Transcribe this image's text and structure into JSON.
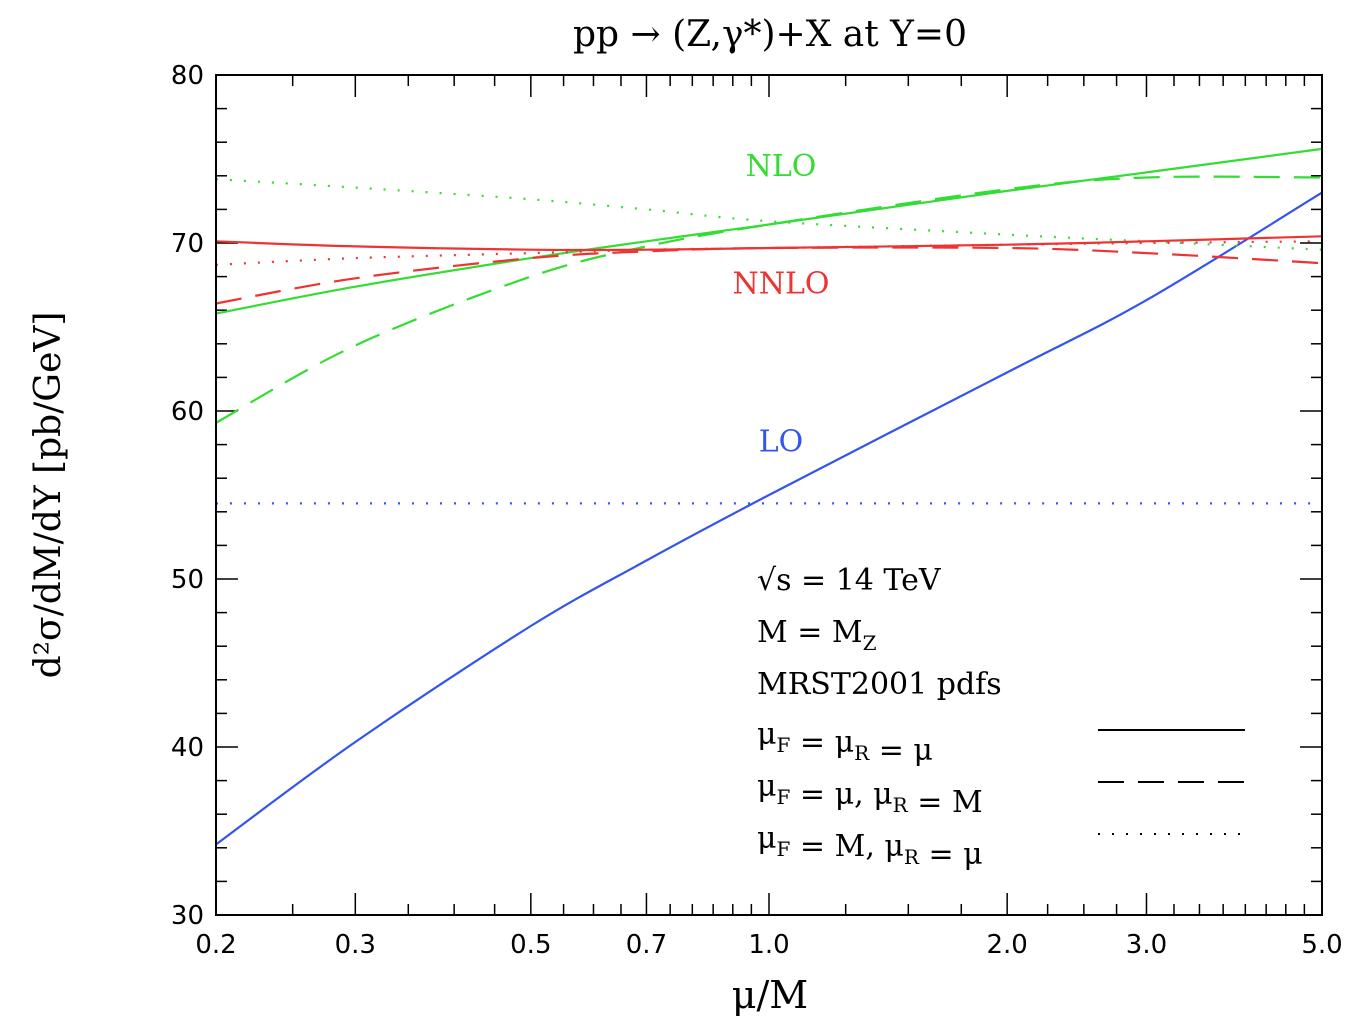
{
  "chart_data": {
    "type": "line",
    "title": "pp → (Z,γ*)+X at Y=0",
    "xlabel": "μ/M",
    "ylabel": "d²σ/dM/dY [pb/GeV]",
    "x_scale": "log",
    "xlim": [
      0.2,
      5.0
    ],
    "ylim": [
      30,
      80
    ],
    "x_ticks": [
      {
        "value": 0.2,
        "label": "0.2"
      },
      {
        "value": 0.3,
        "label": "0.3"
      },
      {
        "value": 0.5,
        "label": "0.5"
      },
      {
        "value": 0.7,
        "label": "0.7"
      },
      {
        "value": 1.0,
        "label": "1.0"
      },
      {
        "value": 2.0,
        "label": "2.0"
      },
      {
        "value": 3.0,
        "label": "3.0"
      },
      {
        "value": 5.0,
        "label": "5.0"
      }
    ],
    "y_ticks": [
      {
        "value": 30,
        "label": "30"
      },
      {
        "value": 40,
        "label": "40"
      },
      {
        "value": 50,
        "label": "50"
      },
      {
        "value": 60,
        "label": "60"
      },
      {
        "value": 70,
        "label": "70"
      },
      {
        "value": 80,
        "label": "80"
      }
    ],
    "grid": false,
    "series": [
      {
        "order": "LO",
        "style": "solid",
        "color": "#3355ee",
        "x": [
          0.2,
          0.3,
          0.5,
          0.7,
          1.0,
          2.0,
          3.0,
          5.0
        ],
        "y": [
          34.2,
          40.3,
          47.2,
          51.1,
          55.0,
          62.3,
          66.6,
          73.0
        ]
      },
      {
        "order": "LO",
        "style": "dotted",
        "color": "#3355ee",
        "x": [
          0.2,
          5.0
        ],
        "y": [
          54.5,
          54.5
        ]
      },
      {
        "order": "NLO",
        "style": "solid",
        "color": "#33dd33",
        "x": [
          0.2,
          0.3,
          0.5,
          0.7,
          1.0,
          2.0,
          3.0,
          5.0
        ],
        "y": [
          65.8,
          67.4,
          69.1,
          70.1,
          71.1,
          73.1,
          74.2,
          75.6
        ]
      },
      {
        "order": "NLO",
        "style": "dashed",
        "color": "#33dd33",
        "x": [
          0.2,
          0.3,
          0.5,
          0.7,
          1.0,
          2.0,
          3.0,
          5.0
        ],
        "y": [
          59.3,
          63.9,
          68.0,
          69.8,
          71.1,
          73.2,
          73.9,
          73.9
        ]
      },
      {
        "order": "NLO",
        "style": "dotted",
        "color": "#33dd33",
        "x": [
          0.2,
          0.3,
          0.5,
          0.7,
          1.0,
          2.0,
          3.0,
          5.0
        ],
        "y": [
          73.8,
          73.3,
          72.6,
          72.0,
          71.3,
          70.5,
          70.1,
          69.6
        ]
      },
      {
        "order": "NNLO",
        "style": "solid",
        "color": "#ee3333",
        "x": [
          0.2,
          0.3,
          0.5,
          0.7,
          1.0,
          2.0,
          3.0,
          5.0
        ],
        "y": [
          70.1,
          69.8,
          69.6,
          69.6,
          69.7,
          69.9,
          70.1,
          70.4
        ]
      },
      {
        "order": "NNLO",
        "style": "dashed",
        "color": "#ee3333",
        "x": [
          0.2,
          0.3,
          0.5,
          0.7,
          1.0,
          2.0,
          3.0,
          5.0
        ],
        "y": [
          66.4,
          67.9,
          69.1,
          69.5,
          69.7,
          69.7,
          69.4,
          68.8
        ]
      },
      {
        "order": "NNLO",
        "style": "dotted",
        "color": "#ee3333",
        "x": [
          0.2,
          0.3,
          0.5,
          0.7,
          1.0,
          2.0,
          3.0,
          5.0
        ],
        "y": [
          68.7,
          69.1,
          69.4,
          69.6,
          69.7,
          69.9,
          70.0,
          70.1
        ]
      }
    ],
    "curve_labels": [
      {
        "text": "NLO",
        "color": "#33dd33",
        "x": 1.0,
        "y": 74.0
      },
      {
        "text": "NNLO",
        "color": "#ee3333",
        "x": 1.0,
        "y": 67.0
      },
      {
        "text": "LO",
        "color": "#3355ee",
        "x": 1.0,
        "y": 57.6
      }
    ],
    "annotations": {
      "energy": "√s = 14 TeV",
      "mass": "M = M",
      "mass_sub": "Z",
      "pdfs": "MRST2001 pdfs"
    },
    "legend": {
      "position": "lower-right",
      "entries": [
        {
          "style": "solid",
          "parts": [
            {
              "t": "μ"
            },
            {
              "t": "F",
              "sub": true
            },
            {
              "t": " = μ"
            },
            {
              "t": "R",
              "sub": true
            },
            {
              "t": " = μ"
            }
          ]
        },
        {
          "style": "dashed",
          "parts": [
            {
              "t": "μ"
            },
            {
              "t": "F",
              "sub": true
            },
            {
              "t": " = μ, μ"
            },
            {
              "t": "R",
              "sub": true
            },
            {
              "t": " = M"
            }
          ]
        },
        {
          "style": "dotted",
          "parts": [
            {
              "t": "μ"
            },
            {
              "t": "F",
              "sub": true
            },
            {
              "t": " = M, μ"
            },
            {
              "t": "R",
              "sub": true
            },
            {
              "t": " = μ"
            }
          ]
        }
      ]
    }
  }
}
